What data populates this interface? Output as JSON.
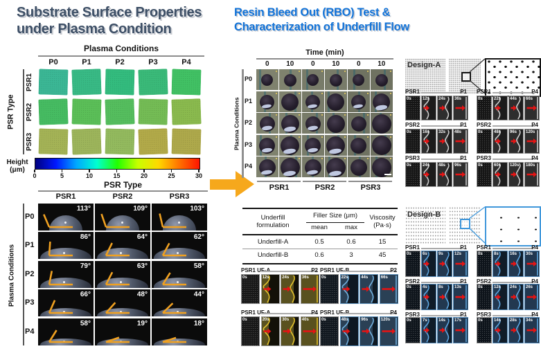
{
  "colors": {
    "left_title": "#3d4f66",
    "right_title": "#1273d8",
    "panel_arrow": "#f6a81c",
    "flow_arrow": "#e51414",
    "angle_marker": "#f0a121",
    "ufa_outline": "#e6c52e",
    "ufb_outline": "#74b3e2",
    "design_a_outline": "#cccccc",
    "design_b_curve": "#5ea6e0",
    "design_b_accent": "#3f97db"
  },
  "left": {
    "title_line1": "Substrate Surface Properties",
    "title_line2": "under Plasma Condition",
    "plasma": {
      "header": "Plasma Conditions",
      "axis_label": "PSR Type",
      "col_labels": [
        "P0",
        "P1",
        "P2",
        "P3",
        "P4"
      ],
      "row_labels": [
        "PSR1",
        "PSR2",
        "PSR3"
      ],
      "cell_colors": [
        [
          "#3bb795",
          "#38ba85",
          "#33bc7e",
          "#3aba79",
          "#41c164"
        ],
        [
          "#46bc62",
          "#5bbf58",
          "#55be5e",
          "#74bc55",
          "#8aba4e"
        ],
        [
          "#a4b356",
          "#9db55b",
          "#93ba5e",
          "#b2aa49",
          "#aea94b"
        ]
      ]
    },
    "colorbar": {
      "label_line1": "Height",
      "label_line2": "(μm)",
      "ticks": [
        "0",
        "5",
        "10",
        "15",
        "20",
        "25",
        "30"
      ],
      "gradient": [
        "#00007e",
        "#0018ff",
        "#00a8ff",
        "#00ffd0",
        "#22ff00",
        "#c8ff00",
        "#ffd800",
        "#ff7300",
        "#ff1400"
      ]
    },
    "contact": {
      "header": "PSR Type",
      "axis_label": "Plasma Conditions",
      "col_labels": [
        "PSR1",
        "PSR2",
        "PSR3"
      ],
      "row_labels": [
        "P0",
        "P1",
        "P2",
        "P3",
        "P4"
      ],
      "angles": [
        [
          "113°",
          "109°",
          "103°"
        ],
        [
          "86°",
          "64°",
          "62°"
        ],
        [
          "79°",
          "63°",
          "58°"
        ],
        [
          "66°",
          "48°",
          "44°"
        ],
        [
          "58°",
          "19°",
          "18°"
        ]
      ]
    }
  },
  "middle": {
    "title_line1": "Resin Bleed Out (RBO) Test &",
    "title_line2": "Characterization of Underfill Flow",
    "rbo": {
      "header": "Time (min)",
      "time_labels": [
        "0",
        "10",
        "0",
        "10",
        "0",
        "10"
      ],
      "axis_label": "Plasma Conditions",
      "row_labels": [
        "P0",
        "P1",
        "P2",
        "P3",
        "P4"
      ],
      "group_labels": [
        "PSR1",
        "PSR2",
        "PSR3"
      ]
    },
    "table": {
      "col1_header_line1": "Underfill",
      "col1_header_line2": "formulation",
      "filler_header": "Filler Size (μm)",
      "sub_headers": [
        "mean",
        "max"
      ],
      "visc_header_line1": "Viscosity",
      "visc_header_line2": "(Pa·s)",
      "rows": [
        {
          "name": "Underfill-A",
          "mean": "0.5",
          "max": "0.6",
          "visc": "15"
        },
        {
          "name": "Underfill-B",
          "mean": "0.6",
          "max": "3",
          "visc": "45"
        }
      ]
    },
    "strips": [
      {
        "title": "PSR1 UF-A",
        "condition": "P2",
        "palette": "ufa",
        "times": [
          "0s",
          "12s",
          "24s",
          "36s"
        ]
      },
      {
        "title": "PSR1 UF-B",
        "condition": "P2",
        "palette": "ufb",
        "times": [
          "0s",
          "22s",
          "44s",
          "66s"
        ]
      },
      {
        "title": "PSR1 UF-A",
        "condition": "P4",
        "palette": "ufa",
        "times": [
          "0s",
          "20s",
          "30s",
          "40s"
        ]
      },
      {
        "title": "PSR1 UF-B",
        "condition": "P4",
        "palette": "ufb",
        "times": [
          "0s",
          "48s",
          "96s",
          "120s"
        ]
      }
    ]
  },
  "right": {
    "design_a": {
      "label": "Design-A",
      "groups": [
        {
          "row": "PSR1",
          "sets": [
            {
              "condition": "P1",
              "times": [
                "0s",
                "12s",
                "24s",
                "36s"
              ]
            },
            {
              "condition": "P4",
              "times": [
                "0s",
                "22s",
                "44s",
                "66s"
              ]
            }
          ]
        },
        {
          "row": "PSR2",
          "sets": [
            {
              "condition": "P1",
              "times": [
                "0s",
                "16s",
                "32s",
                "48s"
              ]
            },
            {
              "condition": "P4",
              "times": [
                "0s",
                "48s",
                "96s",
                "120s"
              ]
            }
          ]
        },
        {
          "row": "PSR3",
          "sets": [
            {
              "condition": "P1",
              "times": [
                "0s",
                "24s",
                "48s",
                "96s"
              ]
            },
            {
              "condition": "P4",
              "times": [
                "0s",
                "60s",
                "120s",
                "180s"
              ]
            }
          ]
        }
      ]
    },
    "design_b": {
      "label": "Design-B",
      "groups": [
        {
          "row": "PSR1",
          "sets": [
            {
              "condition": "P1",
              "times": [
                "0s",
                "6s",
                "9s",
                "12s"
              ]
            },
            {
              "condition": "P4",
              "times": [
                "0s",
                "8s",
                "16s",
                "30s"
              ]
            }
          ]
        },
        {
          "row": "PSR2",
          "sets": [
            {
              "condition": "P1",
              "times": [
                "0s",
                "4s",
                "8s",
                "13s"
              ]
            },
            {
              "condition": "P4",
              "times": [
                "0s",
                "12s",
                "24s",
                "26s"
              ]
            }
          ]
        },
        {
          "row": "PSR3",
          "sets": [
            {
              "condition": "P1",
              "times": [
                "0s",
                "7s",
                "14s",
                "17s"
              ]
            },
            {
              "condition": "P4",
              "times": [
                "0s",
                "14s",
                "28s",
                "34s"
              ]
            }
          ]
        }
      ]
    }
  }
}
